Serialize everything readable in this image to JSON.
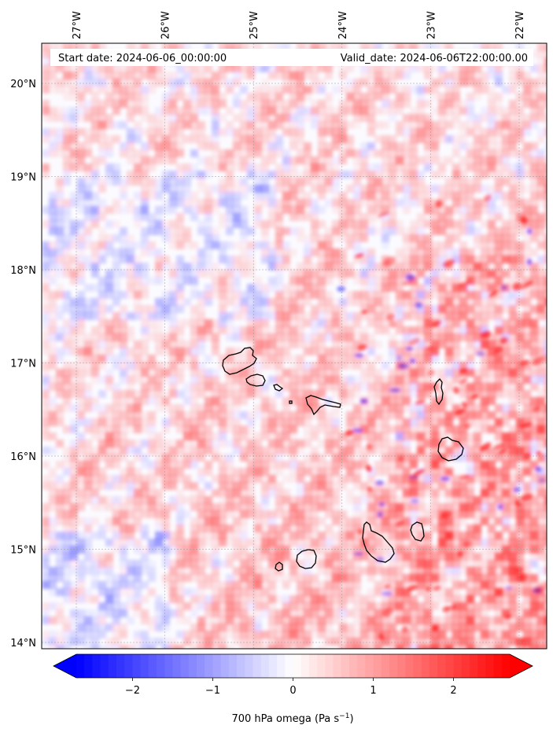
{
  "header": {
    "start_date": "Start date: 2024-06-06_00:00:00",
    "valid_date": "Valid_date: 2024-06-06T22:00:00.00"
  },
  "map": {
    "lon_range": [
      -27.4,
      -21.7
    ],
    "lat_range": [
      13.95,
      20.45
    ],
    "lon_ticks": [
      {
        "value": -27,
        "label": "27°W"
      },
      {
        "value": -26,
        "label": "26°W"
      },
      {
        "value": -25,
        "label": "25°W"
      },
      {
        "value": -24,
        "label": "24°W"
      },
      {
        "value": -23,
        "label": "23°W"
      },
      {
        "value": -22,
        "label": "22°W"
      }
    ],
    "lat_ticks": [
      {
        "value": 20,
        "label": "20°N"
      },
      {
        "value": 19,
        "label": "19°N"
      },
      {
        "value": 18,
        "label": "18°N"
      },
      {
        "value": 17,
        "label": "17°N"
      },
      {
        "value": 16,
        "label": "16°N"
      },
      {
        "value": 15,
        "label": "15°N"
      },
      {
        "value": 14,
        "label": "14°N"
      }
    ],
    "gridlines": true,
    "colors": {
      "negative": "#0000ff",
      "positive": "#ff0000",
      "neutral": "#ffffff",
      "coastline": "#000000"
    }
  },
  "colorbar": {
    "min": -2.7,
    "max": 2.7,
    "ticks": [
      {
        "value": -2,
        "label": "−2"
      },
      {
        "value": -1,
        "label": "−1"
      },
      {
        "value": 0,
        "label": "0"
      },
      {
        "value": 1,
        "label": "1"
      },
      {
        "value": 2,
        "label": "2"
      }
    ],
    "label_main": "700 hPa omega (Pa s",
    "label_exp": "−1",
    "label_close": ")",
    "extend": "both"
  },
  "islands": [
    {
      "name": "Santo Antão"
    },
    {
      "name": "São Vicente"
    },
    {
      "name": "Santa Luzia"
    },
    {
      "name": "Branco"
    },
    {
      "name": "São Nicolau"
    },
    {
      "name": "Sal"
    },
    {
      "name": "Boa Vista"
    },
    {
      "name": "Maio"
    },
    {
      "name": "Santiago"
    },
    {
      "name": "Fogo"
    },
    {
      "name": "Brava"
    }
  ]
}
